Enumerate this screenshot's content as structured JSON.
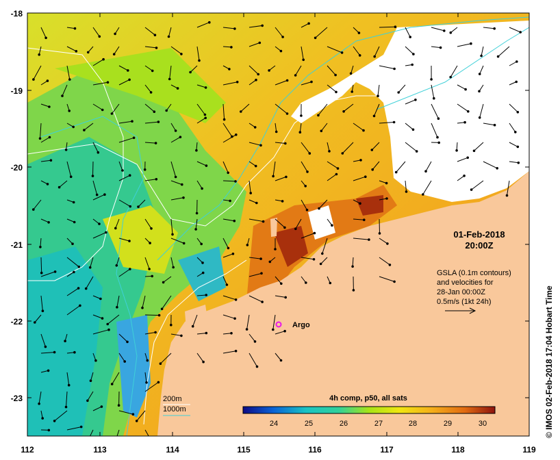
{
  "map": {
    "lon_ticks": [
      "112",
      "113",
      "114",
      "115",
      "116",
      "117",
      "118",
      "119"
    ],
    "lat_ticks": [
      "-18",
      "-19",
      "-20",
      "-21",
      "-22",
      "-23"
    ],
    "datetime_line1": "01-Feb-2018",
    "datetime_line2": "20:00Z",
    "gsla_note": [
      "GSLA (0.1m contours)",
      "and velocities for",
      "28-Jan 00:00Z",
      "0.5m/s (1kt 24h)"
    ],
    "argo_label": "Argo",
    "legend_200m": "200m",
    "legend_1000m": "1000m",
    "colorbar_title": "4h comp, p50, all sats",
    "colorbar_ticks": [
      "24",
      "25",
      "26",
      "27",
      "28",
      "29",
      "30"
    ],
    "side_credit": "© IMOS 02-Feb-2018 17:04 Hobart Time",
    "colors": {
      "land": "#f9c89b",
      "cloud": "#ffffff",
      "cool": "#1fbf9f",
      "mid": "#9be41a",
      "warm": "#f2a91d",
      "hot": "#c0420e",
      "contour_200m": "#ffffff",
      "contour_1000m": "#3fd0d8",
      "argo": "#e817e8"
    }
  }
}
